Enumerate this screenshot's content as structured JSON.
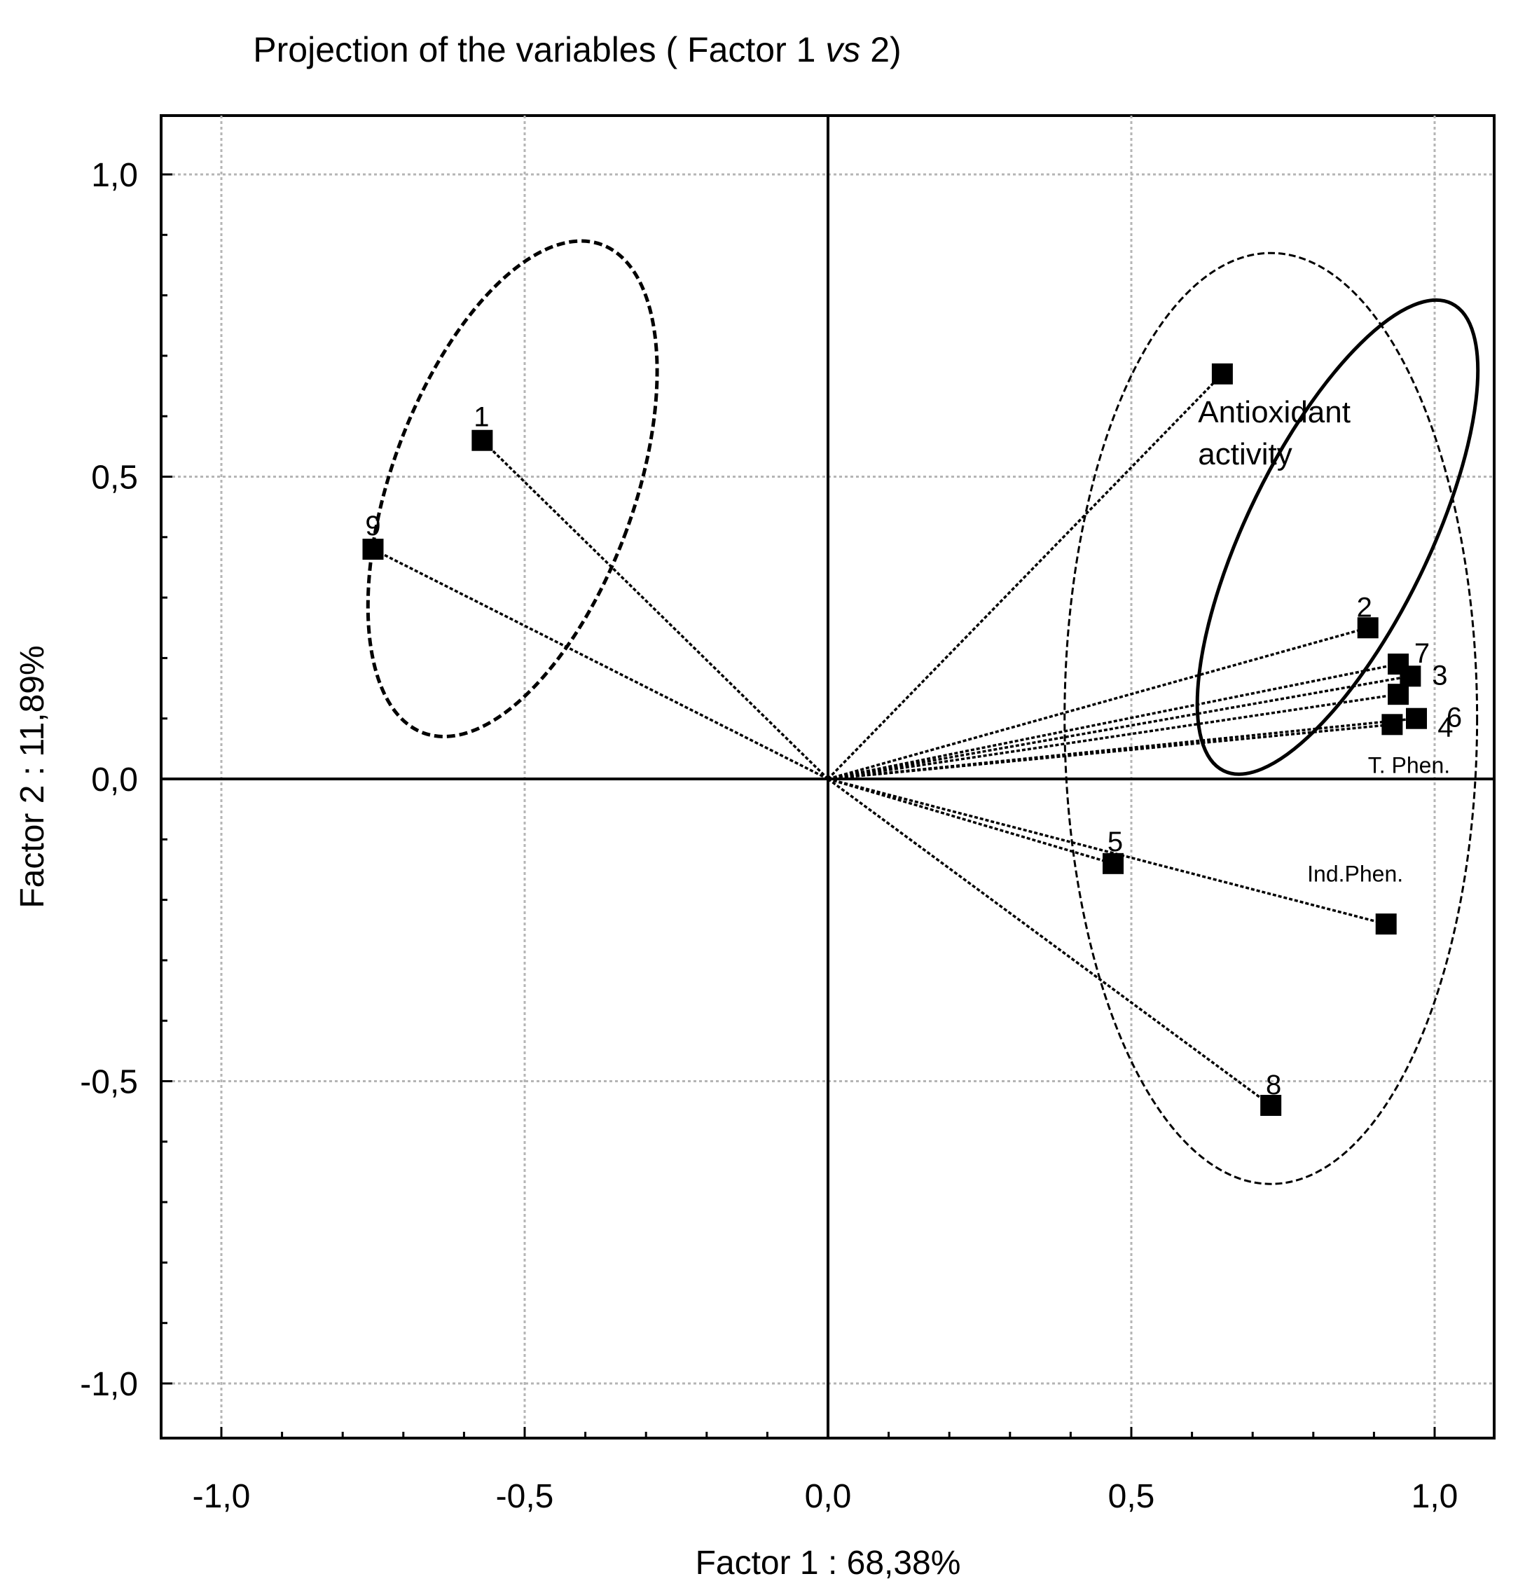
{
  "chart_data": {
    "type": "scatter",
    "title_prefix": "Projection of the variables ( Factor 1 ",
    "title_italic": "vs",
    "title_suffix": " 2)",
    "xlabel": "Factor 1 : 68,38%",
    "ylabel": "Factor 2 : 11,89%",
    "xlim": [
      -1.1,
      1.1
    ],
    "ylim": [
      -1.1,
      1.1
    ],
    "x_ticks": [
      -1.0,
      -0.5,
      0.0,
      0.5,
      1.0
    ],
    "y_ticks": [
      -1.0,
      -0.5,
      0.0,
      0.5,
      1.0
    ],
    "x_tick_labels": [
      "-1,0",
      "-0,5",
      "0,0",
      "0,5",
      "1,0"
    ],
    "y_tick_labels": [
      "-1,0",
      "-0,5",
      "0,0",
      "0,5",
      "1,0"
    ],
    "grid": true,
    "points": [
      {
        "label": "1",
        "x": -0.57,
        "y": 0.56
      },
      {
        "label": "9",
        "x": -0.75,
        "y": 0.38
      },
      {
        "label": "",
        "x": 0.65,
        "y": 0.67
      },
      {
        "label": "2",
        "x": 0.89,
        "y": 0.25
      },
      {
        "label": "7",
        "x": 0.94,
        "y": 0.19
      },
      {
        "label": "3",
        "x": 0.96,
        "y": 0.17
      },
      {
        "label": "",
        "x": 0.94,
        "y": 0.14
      },
      {
        "label": "6",
        "x": 0.97,
        "y": 0.1
      },
      {
        "label": "4",
        "x": 0.93,
        "y": 0.09
      },
      {
        "label": "5",
        "x": 0.47,
        "y": -0.14
      },
      {
        "label": "",
        "x": 0.92,
        "y": -0.24
      },
      {
        "label": "8",
        "x": 0.73,
        "y": -0.54
      }
    ],
    "annotations": [
      {
        "text": "Antioxidant",
        "x": 0.61,
        "y": 0.59
      },
      {
        "text": "activity",
        "x": 0.61,
        "y": 0.52
      },
      {
        "text": "T. Phen.",
        "x": 0.89,
        "y": 0.01
      },
      {
        "text": "Ind.Phen.",
        "x": 0.79,
        "y": -0.17
      }
    ],
    "ellipses": [
      {
        "style": "dashed",
        "cx": -0.52,
        "cy": 0.48,
        "rx": 0.2,
        "ry": 0.43,
        "angle": 20
      },
      {
        "style": "dashed-thin",
        "cx": 0.73,
        "cy": 0.1,
        "rx": 0.34,
        "ry": 0.77,
        "angle": 0
      },
      {
        "style": "solid",
        "cx": 0.84,
        "cy": 0.4,
        "rx": 0.15,
        "ry": 0.43,
        "angle": 26
      }
    ]
  }
}
